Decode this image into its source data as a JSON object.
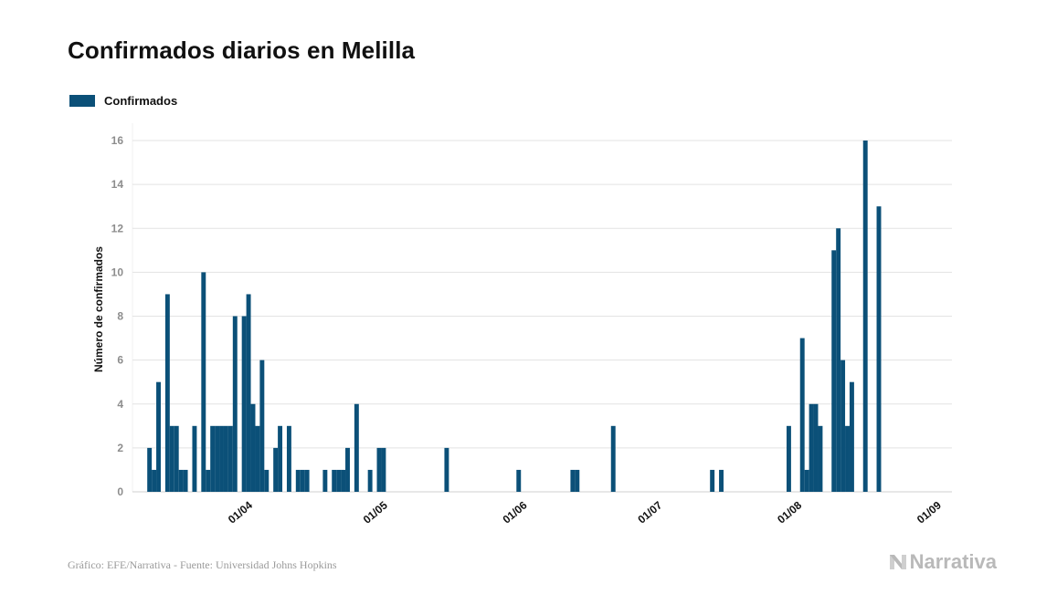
{
  "title": "Confirmados diarios en Melilla",
  "legend": {
    "label": "Confirmados"
  },
  "colors": {
    "bar": "#0b5078",
    "grid": "#e3e3e3",
    "tick_text": "#8d8d8d",
    "axis_text": "#111111"
  },
  "footer": {
    "source": "Gráfico: EFE/Narrativa - Fuente: Universidad Johns Hopkins",
    "brand": "Narrativa"
  },
  "chart_data": {
    "type": "bar",
    "title": "Confirmados diarios en Melilla",
    "xlabel": "",
    "ylabel": "Número de confirmados",
    "ylim": [
      0,
      16
    ],
    "yticks": [
      0,
      2,
      4,
      6,
      8,
      10,
      12,
      14,
      16
    ],
    "xticks": [
      "01/04",
      "01/05",
      "01/06",
      "01/07",
      "01/08",
      "01/09"
    ],
    "grid": "horizontal",
    "legend": "top-left",
    "series": [
      {
        "name": "Confirmados",
        "points": [
          [
            "2020-03-09",
            2
          ],
          [
            "2020-03-10",
            1
          ],
          [
            "2020-03-11",
            5
          ],
          [
            "2020-03-13",
            9
          ],
          [
            "2020-03-14",
            3
          ],
          [
            "2020-03-15",
            3
          ],
          [
            "2020-03-16",
            1
          ],
          [
            "2020-03-17",
            1
          ],
          [
            "2020-03-19",
            3
          ],
          [
            "2020-03-21",
            10
          ],
          [
            "2020-03-22",
            1
          ],
          [
            "2020-03-23",
            3
          ],
          [
            "2020-03-24",
            3
          ],
          [
            "2020-03-25",
            3
          ],
          [
            "2020-03-26",
            3
          ],
          [
            "2020-03-27",
            3
          ],
          [
            "2020-03-28",
            8
          ],
          [
            "2020-03-30",
            8
          ],
          [
            "2020-03-31",
            9
          ],
          [
            "2020-04-01",
            4
          ],
          [
            "2020-04-02",
            3
          ],
          [
            "2020-04-03",
            6
          ],
          [
            "2020-04-04",
            1
          ],
          [
            "2020-04-06",
            2
          ],
          [
            "2020-04-07",
            3
          ],
          [
            "2020-04-09",
            3
          ],
          [
            "2020-04-11",
            1
          ],
          [
            "2020-04-12",
            1
          ],
          [
            "2020-04-13",
            1
          ],
          [
            "2020-04-17",
            1
          ],
          [
            "2020-04-19",
            1
          ],
          [
            "2020-04-20",
            1
          ],
          [
            "2020-04-21",
            1
          ],
          [
            "2020-04-22",
            2
          ],
          [
            "2020-04-24",
            4
          ],
          [
            "2020-04-27",
            1
          ],
          [
            "2020-04-29",
            2
          ],
          [
            "2020-04-30",
            2
          ],
          [
            "2020-05-14",
            2
          ],
          [
            "2020-05-30",
            1
          ],
          [
            "2020-06-11",
            1
          ],
          [
            "2020-06-12",
            1
          ],
          [
            "2020-06-20",
            3
          ],
          [
            "2020-07-12",
            1
          ],
          [
            "2020-07-14",
            1
          ],
          [
            "2020-07-29",
            3
          ],
          [
            "2020-08-01",
            7
          ],
          [
            "2020-08-02",
            1
          ],
          [
            "2020-08-03",
            4
          ],
          [
            "2020-08-04",
            4
          ],
          [
            "2020-08-05",
            3
          ],
          [
            "2020-08-08",
            11
          ],
          [
            "2020-08-09",
            12
          ],
          [
            "2020-08-10",
            6
          ],
          [
            "2020-08-11",
            3
          ],
          [
            "2020-08-12",
            5
          ],
          [
            "2020-08-15",
            16
          ],
          [
            "2020-08-18",
            13
          ]
        ]
      }
    ]
  }
}
